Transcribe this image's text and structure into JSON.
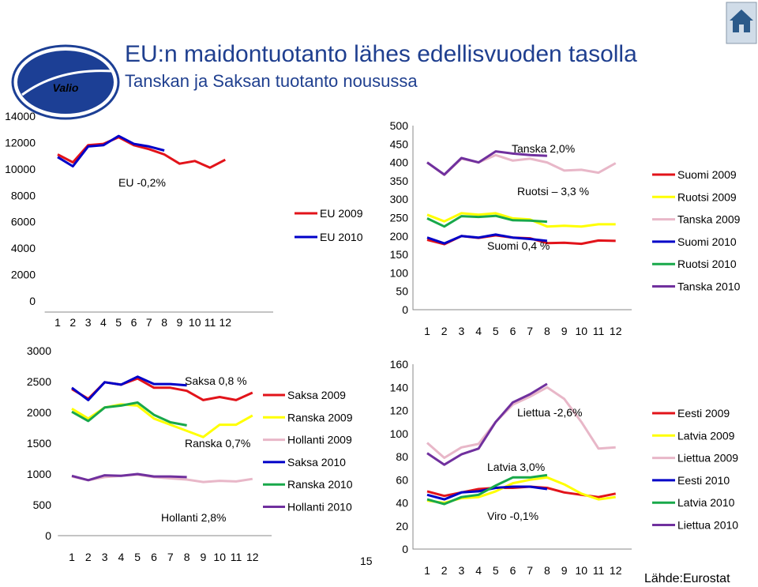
{
  "header": {
    "title": "EU:n maidontuotanto lähes edellisvuoden tasolla",
    "subtitle": "Tanskan ja Saksan tuotanto nousussa",
    "page_number": "15",
    "source": "Lähde:Eurostat",
    "logo_text": "Valio"
  },
  "colors": {
    "red": "#E2131A",
    "blue": "#0000C8",
    "yellow": "#FFFF00",
    "pink": "#E8B7C8",
    "green": "#18A84A",
    "purple": "#70309E",
    "title": "#1F3F8F",
    "logo": "#1C3F95"
  },
  "icons": {
    "home": "home-icon"
  },
  "chart_data": [
    {
      "id": "eu",
      "type": "line",
      "ylim": [
        0,
        14000
      ],
      "yticks": [
        "0",
        "2000",
        "4000",
        "6000",
        "8000",
        "10000",
        "12000",
        "14000"
      ],
      "xticks": [
        "1",
        "2",
        "3",
        "4",
        "5",
        "6",
        "7",
        "8",
        "9",
        "10",
        "11",
        "12"
      ],
      "annotations": [
        "EU -0,2%"
      ],
      "legend_position": "right",
      "series": [
        {
          "name": "EU 2009",
          "color": "red",
          "values": [
            11100,
            10500,
            11800,
            11900,
            12400,
            11800,
            11500,
            11100,
            10400,
            10600,
            10100,
            10700
          ]
        },
        {
          "name": "EU 2010",
          "color": "blue",
          "values": [
            10900,
            10200,
            11700,
            11800,
            12500,
            11900,
            11700,
            11400
          ]
        }
      ]
    },
    {
      "id": "fi-se-dk",
      "type": "line",
      "ylim": [
        0,
        500
      ],
      "yticks": [
        "0",
        "50",
        "100",
        "150",
        "200",
        "250",
        "300",
        "350",
        "400",
        "450",
        "500"
      ],
      "xticks": [
        "1",
        "2",
        "3",
        "4",
        "5",
        "6",
        "7",
        "8",
        "9",
        "10",
        "11",
        "12"
      ],
      "annotations": [
        "Tanska 2,0%",
        "Ruotsi – 3,3 %",
        "Suomi 0,4 %"
      ],
      "legend_position": "right",
      "series": [
        {
          "name": "Suomi 2009",
          "color": "red",
          "values": [
            190,
            178,
            200,
            195,
            202,
            196,
            194,
            181,
            182,
            179,
            188,
            187
          ]
        },
        {
          "name": "Ruotsi 2009",
          "color": "yellow",
          "values": [
            258,
            240,
            262,
            258,
            262,
            248,
            245,
            226,
            228,
            226,
            232,
            232
          ]
        },
        {
          "name": "Tanska 2009",
          "color": "pink",
          "values": [
            400,
            366,
            410,
            400,
            420,
            405,
            410,
            400,
            378,
            380,
            372,
            398
          ]
        },
        {
          "name": "Suomi 2010",
          "color": "blue",
          "values": [
            196,
            180,
            200,
            196,
            204,
            196,
            192,
            187
          ]
        },
        {
          "name": "Ruotsi 2010",
          "color": "green",
          "values": [
            248,
            226,
            254,
            252,
            255,
            243,
            242,
            239
          ]
        },
        {
          "name": "Tanska 2010",
          "color": "purple",
          "values": [
            400,
            367,
            412,
            400,
            430,
            424,
            420,
            418
          ]
        }
      ]
    },
    {
      "id": "de-fr-nl",
      "type": "line",
      "ylim": [
        0,
        3000
      ],
      "yticks": [
        "0",
        "500",
        "1000",
        "1500",
        "2000",
        "2500",
        "3000"
      ],
      "xticks": [
        "1",
        "2",
        "3",
        "4",
        "5",
        "6",
        "7",
        "8",
        "9",
        "10",
        "11",
        "12"
      ],
      "annotations": [
        "Saksa 0,8 %",
        "Ranska 0,7%",
        "Hollanti 2,8%"
      ],
      "legend_position": "right",
      "series": [
        {
          "name": "Saksa 2009",
          "color": "red",
          "values": [
            2380,
            2220,
            2490,
            2450,
            2550,
            2400,
            2400,
            2350,
            2200,
            2250,
            2200,
            2320
          ]
        },
        {
          "name": "Ranska 2009",
          "color": "yellow",
          "values": [
            2060,
            1900,
            2080,
            2130,
            2110,
            1900,
            1800,
            1700,
            1600,
            1800,
            1800,
            1950
          ]
        },
        {
          "name": "Hollanti 2009",
          "color": "pink",
          "values": [
            960,
            900,
            950,
            970,
            990,
            950,
            930,
            910,
            870,
            890,
            880,
            920
          ]
        },
        {
          "name": "Saksa 2010",
          "color": "blue",
          "values": [
            2400,
            2200,
            2490,
            2450,
            2580,
            2460,
            2460,
            2440
          ]
        },
        {
          "name": "Ranska 2010",
          "color": "green",
          "values": [
            2010,
            1860,
            2080,
            2110,
            2160,
            1960,
            1840,
            1790
          ]
        },
        {
          "name": "Hollanti 2010",
          "color": "purple",
          "values": [
            970,
            900,
            980,
            970,
            1000,
            960,
            960,
            950
          ]
        }
      ]
    },
    {
      "id": "ee-lv-lt",
      "type": "line",
      "ylim": [
        0,
        160
      ],
      "yticks": [
        "0",
        "20",
        "40",
        "60",
        "80",
        "100",
        "120",
        "140",
        "160"
      ],
      "xticks": [
        "1",
        "2",
        "3",
        "4",
        "5",
        "6",
        "7",
        "8",
        "9",
        "10",
        "11",
        "12"
      ],
      "annotations": [
        "Liettua -2,6%",
        "Latvia 3,0%",
        "Viro -0,1%"
      ],
      "legend_position": "right",
      "series": [
        {
          "name": "Eesti 2009",
          "color": "red",
          "values": [
            50,
            46,
            49,
            52,
            53,
            53,
            54,
            53,
            49,
            47,
            45,
            48
          ]
        },
        {
          "name": "Latvia 2009",
          "color": "yellow",
          "values": [
            42,
            40,
            44,
            45,
            50,
            57,
            60,
            62,
            56,
            48,
            43,
            45
          ]
        },
        {
          "name": "Liettua 2009",
          "color": "pink",
          "values": [
            92,
            79,
            88,
            91,
            110,
            125,
            132,
            140,
            130,
            110,
            87,
            88
          ]
        },
        {
          "name": "Eesti 2010",
          "color": "blue",
          "values": [
            47,
            43,
            49,
            50,
            53,
            54,
            54,
            52
          ]
        },
        {
          "name": "Latvia 2010",
          "color": "green",
          "values": [
            43,
            39,
            45,
            47,
            55,
            62,
            62,
            64
          ]
        },
        {
          "name": "Liettua 2010",
          "color": "purple",
          "values": [
            83,
            73,
            82,
            87,
            110,
            127,
            134,
            143
          ]
        }
      ]
    }
  ]
}
